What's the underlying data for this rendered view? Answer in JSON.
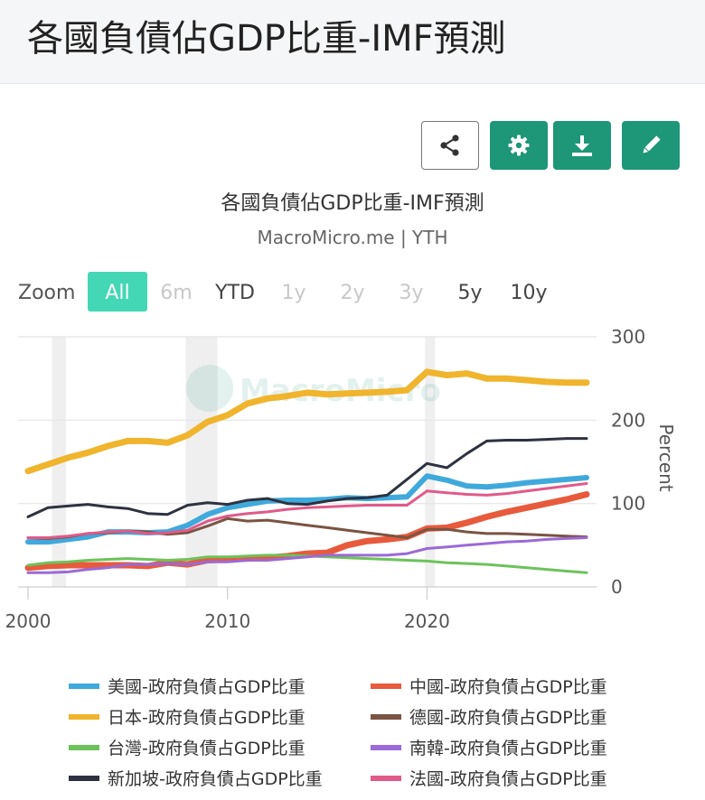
{
  "page": {
    "title": "各國負債佔GDP比重-IMF預測"
  },
  "toolbar": {
    "buttons": [
      {
        "name": "share",
        "icon": "share-icon"
      },
      {
        "name": "settings",
        "icon": "gear-icon"
      },
      {
        "name": "download",
        "icon": "download-icon"
      },
      {
        "name": "edit",
        "icon": "pencil-icon"
      }
    ],
    "accent": "#1e9678"
  },
  "zoom": {
    "label": "Zoom",
    "options": [
      {
        "label": "All",
        "state": "active"
      },
      {
        "label": "6m",
        "state": "disabled"
      },
      {
        "label": "YTD",
        "state": "enabled"
      },
      {
        "label": "1y",
        "state": "disabled"
      },
      {
        "label": "2y",
        "state": "disabled"
      },
      {
        "label": "3y",
        "state": "disabled"
      },
      {
        "label": "5y",
        "state": "enabled"
      },
      {
        "label": "10y",
        "state": "enabled"
      }
    ]
  },
  "watermark": "MacroMicro",
  "chart_data": {
    "type": "line",
    "title": "各國負債佔GDP比重-IMF預測",
    "subtitle": "MacroMicro.me | YTH",
    "xlabel": "",
    "ylabel": "Percent",
    "xlim": [
      1999.5,
      2028.5
    ],
    "ylim": [
      0,
      300
    ],
    "x_ticks": [
      2000,
      2010,
      2020
    ],
    "y_ticks": [
      0,
      100,
      200,
      300
    ],
    "grid": true,
    "legend_position": "bottom",
    "shaded_periods": [
      [
        2001.2,
        2001.9
      ],
      [
        2007.9,
        2009.5
      ],
      [
        2019.9,
        2020.4
      ]
    ],
    "x": [
      2000,
      2001,
      2002,
      2003,
      2004,
      2005,
      2006,
      2007,
      2008,
      2009,
      2010,
      2011,
      2012,
      2013,
      2014,
      2015,
      2016,
      2017,
      2018,
      2019,
      2020,
      2021,
      2022,
      2023,
      2024,
      2025,
      2026,
      2027,
      2028
    ],
    "series": [
      {
        "name": "美國-政府負債占GDP比重",
        "color": "#3fa9dc",
        "width": 6,
        "values": [
          54,
          54,
          57,
          60,
          66,
          66,
          65,
          66,
          74,
          87,
          95,
          99,
          103,
          104,
          104,
          105,
          107,
          106,
          107,
          108,
          133,
          128,
          121,
          120,
          122,
          125,
          127,
          129,
          131
        ]
      },
      {
        "name": "中國-政府負債占GDP比重",
        "color": "#e85a3c",
        "width": 7,
        "values": [
          23,
          25,
          26,
          26,
          26,
          26,
          25,
          29,
          27,
          32,
          33,
          34,
          35,
          37,
          40,
          41,
          50,
          55,
          57,
          60,
          70,
          71,
          77,
          84,
          90,
          95,
          100,
          105,
          111
        ]
      },
      {
        "name": "日本-政府負債占GDP比重",
        "color": "#f0b42d",
        "width": 7,
        "values": [
          139,
          147,
          155,
          161,
          169,
          175,
          175,
          173,
          182,
          198,
          206,
          220,
          226,
          229,
          233,
          231,
          232,
          233,
          234,
          236,
          258,
          254,
          256,
          250,
          250,
          248,
          246,
          245,
          245
        ]
      },
      {
        "name": "德國-政府負債占GDP比重",
        "color": "#7a5442",
        "width": 3,
        "values": [
          59,
          58,
          60,
          64,
          65,
          67,
          66,
          63,
          65,
          73,
          82,
          79,
          80,
          77,
          74,
          71,
          68,
          65,
          62,
          59,
          69,
          69,
          66,
          64,
          64,
          63,
          62,
          61,
          60
        ]
      },
      {
        "name": "台灣-政府負債占GDP比重",
        "color": "#6cc35a",
        "width": 3,
        "values": [
          26,
          29,
          30,
          32,
          33,
          34,
          33,
          32,
          33,
          36,
          36,
          37,
          38,
          38,
          37,
          36,
          35,
          34,
          33,
          32,
          31,
          29,
          28,
          27,
          25,
          23,
          21,
          19,
          17
        ]
      },
      {
        "name": "南韓-政府負債占GDP比重",
        "color": "#9b6ad6",
        "width": 3,
        "values": [
          17,
          17,
          18,
          21,
          23,
          27,
          27,
          28,
          27,
          30,
          30,
          32,
          32,
          34,
          36,
          38,
          38,
          38,
          38,
          40,
          46,
          48,
          50,
          52,
          54,
          55,
          57,
          58,
          59
        ]
      },
      {
        "name": "新加坡-政府負債占GDP比重",
        "color": "#2e3240",
        "width": 3,
        "values": [
          84,
          95,
          97,
          99,
          96,
          94,
          88,
          87,
          98,
          101,
          99,
          104,
          106,
          100,
          99,
          103,
          106,
          107,
          110,
          129,
          148,
          143,
          160,
          175,
          176,
          176,
          177,
          178,
          178
        ]
      },
      {
        "name": "法國-政府負債占GDP比重",
        "color": "#e05a8a",
        "width": 3,
        "values": [
          59,
          59,
          61,
          64,
          66,
          67,
          64,
          65,
          68,
          79,
          85,
          88,
          90,
          93,
          95,
          96,
          97,
          98,
          98,
          98,
          115,
          113,
          111,
          110,
          112,
          115,
          118,
          121,
          124
        ]
      }
    ]
  }
}
